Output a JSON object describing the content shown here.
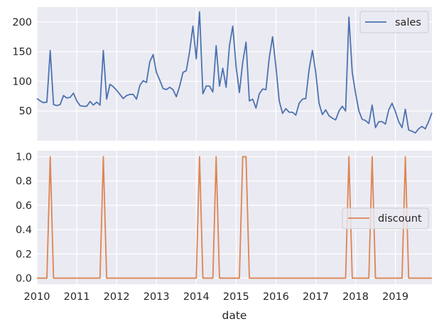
{
  "chart_data": [
    {
      "type": "line",
      "series": [
        {
          "name": "sales",
          "color": "#4c72b0",
          "x": [
            "2010-01",
            "2010-02",
            "2010-03",
            "2010-04",
            "2010-05",
            "2010-06",
            "2010-07",
            "2010-08",
            "2010-09",
            "2010-10",
            "2010-11",
            "2010-12",
            "2011-01",
            "2011-02",
            "2011-03",
            "2011-04",
            "2011-05",
            "2011-06",
            "2011-07",
            "2011-08",
            "2011-09",
            "2011-10",
            "2011-11",
            "2011-12",
            "2012-01",
            "2012-02",
            "2012-03",
            "2012-04",
            "2012-05",
            "2012-06",
            "2012-07",
            "2012-08",
            "2012-09",
            "2012-10",
            "2012-11",
            "2012-12",
            "2013-01",
            "2013-02",
            "2013-03",
            "2013-04",
            "2013-05",
            "2013-06",
            "2013-07",
            "2013-08",
            "2013-09",
            "2013-10",
            "2013-11",
            "2013-12",
            "2014-01",
            "2014-02",
            "2014-03",
            "2014-04",
            "2014-05",
            "2014-06",
            "2014-07",
            "2014-08",
            "2014-09",
            "2014-10",
            "2014-11",
            "2014-12",
            "2015-01",
            "2015-02",
            "2015-03",
            "2015-04",
            "2015-05",
            "2015-06",
            "2015-07",
            "2015-08",
            "2015-09",
            "2015-10",
            "2015-11",
            "2015-12",
            "2016-01",
            "2016-02",
            "2016-03",
            "2016-04",
            "2016-05",
            "2016-06",
            "2016-07",
            "2016-08",
            "2016-09",
            "2016-10",
            "2016-11",
            "2016-12",
            "2017-01",
            "2017-02",
            "2017-03",
            "2017-04",
            "2017-05",
            "2017-06",
            "2017-07",
            "2017-08",
            "2017-09",
            "2017-10",
            "2017-11",
            "2017-12",
            "2018-01",
            "2018-02",
            "2018-03",
            "2018-04",
            "2018-05",
            "2018-06",
            "2018-07",
            "2018-08",
            "2018-09",
            "2018-10",
            "2018-11",
            "2018-12",
            "2019-01",
            "2019-02",
            "2019-03",
            "2019-04",
            "2019-05",
            "2019-06",
            "2019-07",
            "2019-08",
            "2019-09",
            "2019-10",
            "2019-11",
            "2019-12"
          ],
          "values": [
            71,
            67,
            64,
            65,
            152,
            61,
            59,
            61,
            76,
            72,
            73,
            80,
            67,
            59,
            58,
            58,
            66,
            60,
            65,
            60,
            152,
            70,
            95,
            91,
            85,
            78,
            71,
            76,
            78,
            78,
            70,
            93,
            101,
            98,
            133,
            145,
            115,
            102,
            88,
            86,
            90,
            86,
            74,
            92,
            115,
            118,
            150,
            193,
            138,
            217,
            79,
            92,
            92,
            82,
            160,
            92,
            122,
            90,
            160,
            193,
            125,
            81,
            132,
            166,
            67,
            70,
            55,
            79,
            87,
            86,
            140,
            175,
            125,
            67,
            46,
            54,
            48,
            48,
            43,
            63,
            70,
            71,
            120,
            152,
            115,
            63,
            44,
            52,
            42,
            38,
            35,
            50,
            58,
            50,
            208,
            115,
            80,
            50,
            36,
            34,
            29,
            60,
            22,
            32,
            32,
            28,
            52,
            63,
            49,
            32,
            22,
            53,
            18,
            16,
            13,
            20,
            24,
            20,
            32,
            47
          ]
        }
      ],
      "ylim": [
        0,
        225
      ],
      "yticks": [
        50,
        100,
        150,
        200
      ],
      "legend": "top-right",
      "grid": true
    },
    {
      "type": "line",
      "series": [
        {
          "name": "discount",
          "color": "#dd8452",
          "x_ref": "same as sales",
          "values": [
            0,
            0,
            0,
            0,
            1,
            0,
            0,
            0,
            0,
            0,
            0,
            0,
            0,
            0,
            0,
            0,
            0,
            0,
            0,
            0,
            1,
            0,
            0,
            0,
            0,
            0,
            0,
            0,
            0,
            0,
            0,
            0,
            0,
            0,
            0,
            0,
            0,
            0,
            0,
            0,
            0,
            0,
            0,
            0,
            0,
            0,
            0,
            0,
            0,
            1,
            0,
            0,
            0,
            0,
            1,
            0,
            0,
            0,
            0,
            0,
            0,
            0,
            1,
            1,
            0,
            0,
            0,
            0,
            0,
            0,
            0,
            0,
            0,
            0,
            0,
            0,
            0,
            0,
            0,
            0,
            0,
            0,
            0,
            0,
            0,
            0,
            0,
            0,
            0,
            0,
            0,
            0,
            0,
            0,
            1,
            0,
            0,
            0,
            0,
            0,
            0,
            1,
            0,
            0,
            0,
            0,
            0,
            0,
            0,
            0,
            0,
            1,
            0,
            0,
            0,
            0,
            0,
            0,
            0,
            0
          ]
        }
      ],
      "ylim": [
        -0.05,
        1.05
      ],
      "yticks": [
        "0.0",
        "0.2",
        "0.4",
        "0.6",
        "0.8",
        "1.0"
      ],
      "legend": "center-right",
      "grid": true
    }
  ],
  "xaxis": {
    "label": "date",
    "ticklabels": [
      "2010",
      "2011",
      "2012",
      "2013",
      "2014",
      "2015",
      "2016",
      "2017",
      "2018",
      "2019"
    ]
  }
}
